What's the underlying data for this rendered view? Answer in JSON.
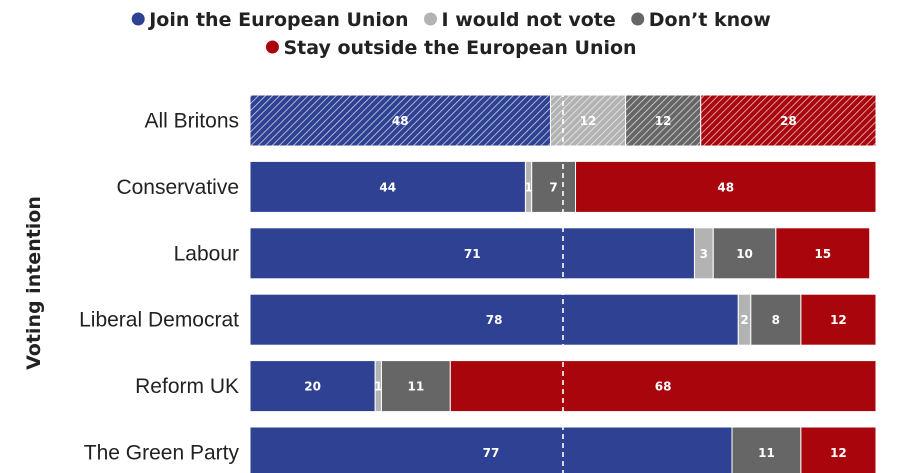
{
  "chart_data": {
    "type": "bar",
    "orientation": "horizontal",
    "stacked": true,
    "ylabel": "Voting intention",
    "categories": [
      "All Britons",
      "Conservative",
      "Labour",
      "Liberal Democrat",
      "Reform UK",
      "The Green Party"
    ],
    "series": [
      {
        "name": "Join the European Union",
        "color": "#2e4193",
        "values": [
          48,
          44,
          71,
          78,
          20,
          77
        ]
      },
      {
        "name": "I would not vote",
        "color": "#b3b3b3",
        "values": [
          12,
          1,
          3,
          2,
          1,
          0
        ]
      },
      {
        "name": "Don’t know",
        "color": "#666666",
        "values": [
          12,
          7,
          10,
          8,
          11,
          11
        ]
      },
      {
        "name": "Stay outside the European Union",
        "color": "#a8050d",
        "values": [
          28,
          48,
          15,
          12,
          68,
          12
        ]
      }
    ],
    "hatched_category": "All Britons",
    "reference_line": 50,
    "xlim": [
      0,
      100
    ],
    "legend_position": "top"
  }
}
